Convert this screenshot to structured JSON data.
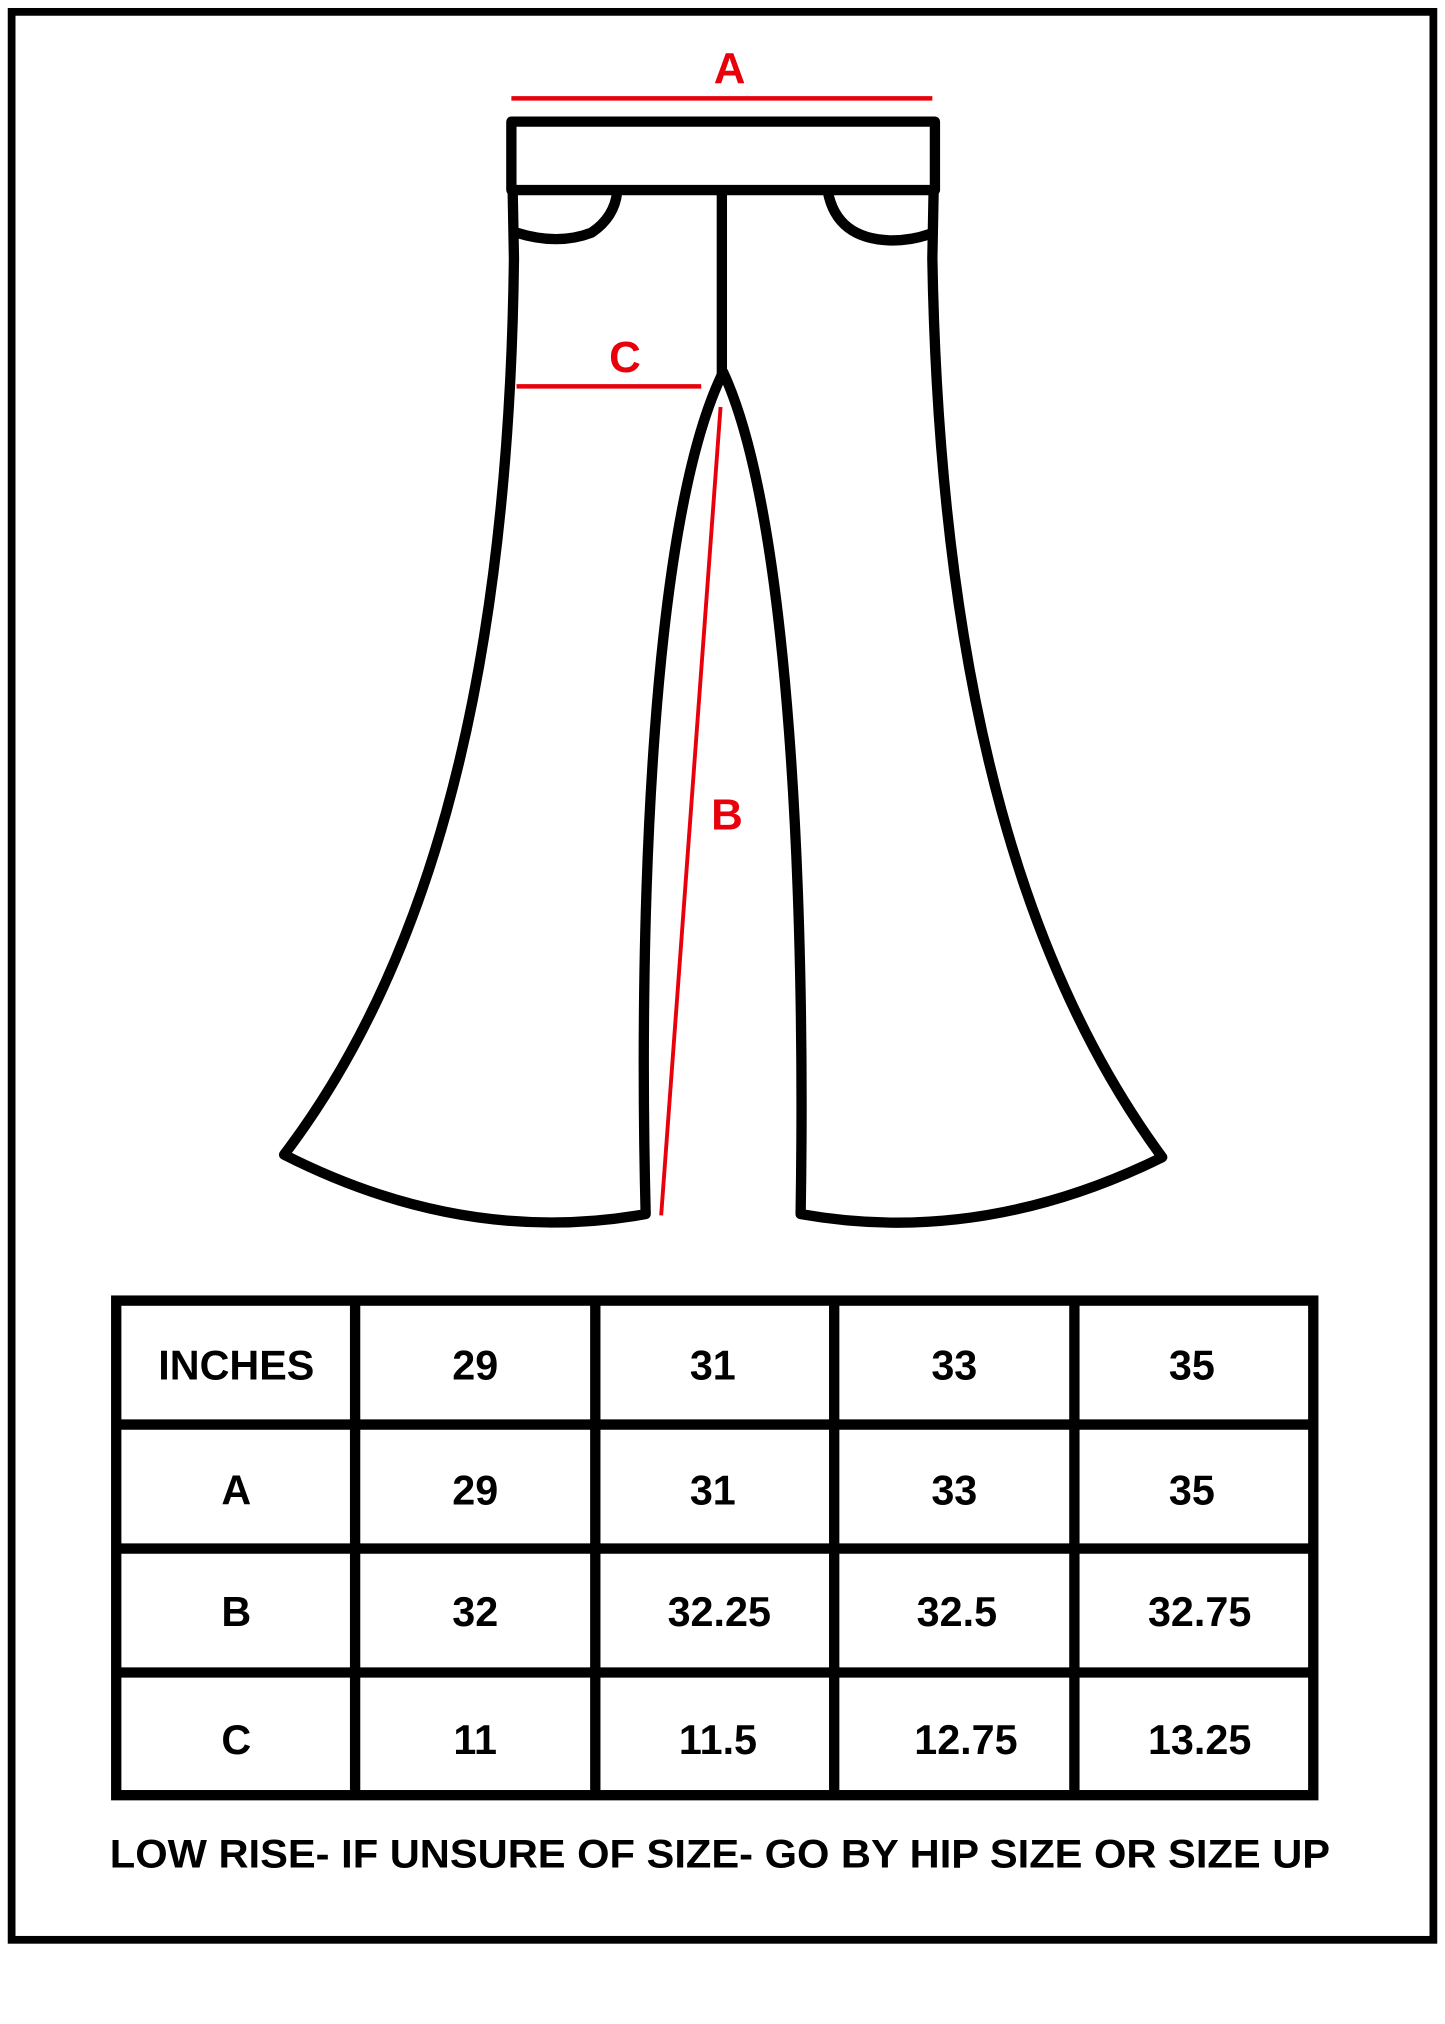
{
  "diagram": {
    "labels": {
      "a": "A",
      "b": "B",
      "c": "C"
    },
    "colors": {
      "measure_line": "#e8000b",
      "outline": "#000000"
    }
  },
  "table": {
    "header": [
      "INCHES",
      "29",
      "31",
      "33",
      "35"
    ],
    "rows": [
      [
        "A",
        "29",
        "31",
        "33",
        "35"
      ],
      [
        "B",
        "32",
        "32.25",
        "32.5",
        "32.75"
      ],
      [
        "C",
        "11",
        "11.5",
        "12.75",
        "13.25"
      ]
    ]
  },
  "footer": {
    "note": "LOW RISE- IF UNSURE OF SIZE- GO BY HIP SIZE OR SIZE UP"
  }
}
